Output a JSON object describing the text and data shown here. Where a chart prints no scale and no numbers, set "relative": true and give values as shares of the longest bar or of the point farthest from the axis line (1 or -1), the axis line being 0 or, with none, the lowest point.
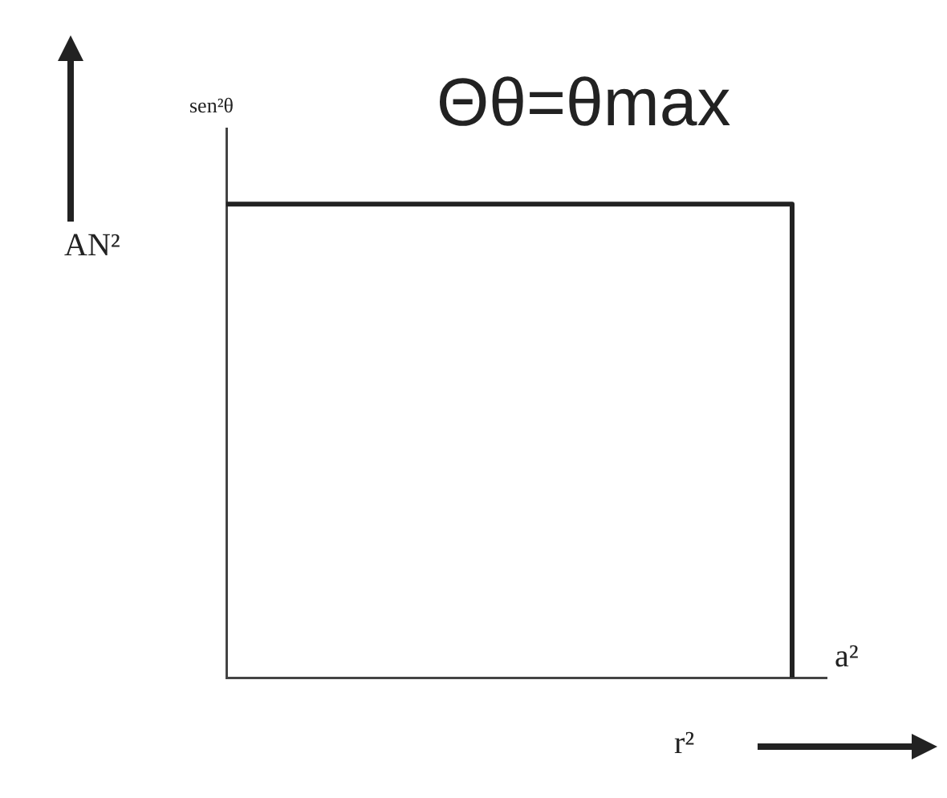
{
  "chart_data": {
    "type": "step",
    "title": "Θθ=θmax",
    "xlabel": "r²",
    "ylabel": "AN²",
    "annotations": [
      "sen²θ",
      "a²"
    ],
    "relative": true,
    "categories": [
      null,
      null
    ],
    "series": [
      {
        "color": "#222222",
        "values": [
          1,
          0
        ]
      }
    ],
    "marker": "none",
    "line_style": "solid",
    "grid": false,
    "legend": false
  }
}
